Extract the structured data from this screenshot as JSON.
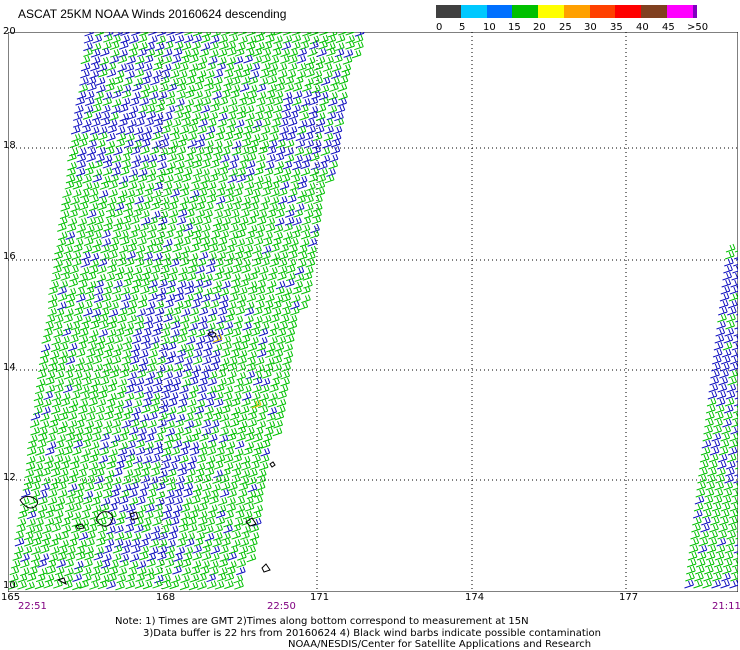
{
  "title": "ASCAT 25KM NOAA Winds 20160624 descending",
  "legend": {
    "labels": [
      "0",
      "5",
      "10",
      "15",
      "20",
      "25",
      "30",
      "35",
      "40",
      "45",
      ">50 knots"
    ],
    "colors": [
      "#404040",
      "#00c8ff",
      "#0070ff",
      "#00c000",
      "#ffff00",
      "#ffa000",
      "#ff4000",
      "#ff0000",
      "#804020",
      "#ff00ff",
      "#8000c0"
    ]
  },
  "axes": {
    "lat_ticks": [
      "20",
      "18",
      "16",
      "14",
      "12",
      "10"
    ],
    "lon_ticks": [
      "165",
      "168",
      "171",
      "174",
      "177"
    ]
  },
  "times": {
    "left": "22:51",
    "middle": "22:50",
    "right": "21:11"
  },
  "notes": {
    "line1": "Note: 1) Times are GMT 2)Times along bottom correspond to measurement at 15N",
    "line2": "3)Data buffer is 22 hrs from 20160624 4) Black wind barbs indicate possible contamination",
    "line3": "NOAA/NESDIS/Center for Satellite Applications and Research"
  },
  "barb_colors": {
    "green": "#00c000",
    "blue": "#1010c0",
    "yellow": "#e0c000",
    "black": "#000000"
  }
}
